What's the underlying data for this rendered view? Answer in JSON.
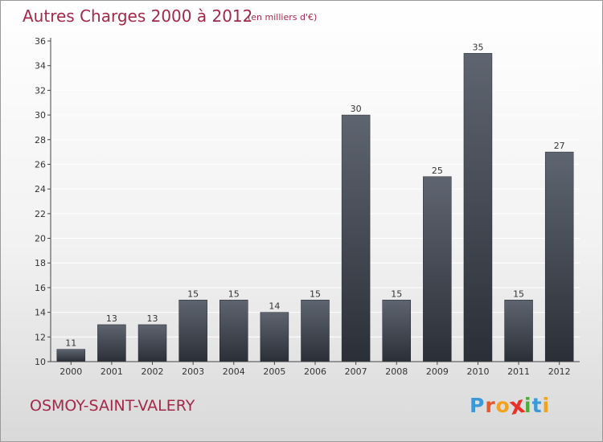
{
  "header": {
    "title": "Autres Charges 2000 à 2012",
    "unit": "(en milliers d'€)"
  },
  "footer": {
    "commune": "OSMOY-SAINT-VALERY",
    "logo_letters": [
      "P",
      "r",
      "o",
      "x",
      "i",
      "t",
      "i"
    ],
    "logo_colors": [
      "#3a9ad9",
      "#e8562a",
      "#f2a21b",
      "#e8312a",
      "#4cae3a",
      "#3a9ad9",
      "#f2a21b"
    ]
  },
  "colors": {
    "title": "#a3294a",
    "bar_top": "#5f6570",
    "bar_bottom": "#2a2f37",
    "axis": "#444444",
    "grid": "#ffffff"
  },
  "chart_data": {
    "type": "bar",
    "categories": [
      "2000",
      "2001",
      "2002",
      "2003",
      "2004",
      "2005",
      "2006",
      "2007",
      "2008",
      "2009",
      "2010",
      "2011",
      "2012"
    ],
    "values": [
      11,
      13,
      13,
      15,
      15,
      14,
      15,
      30,
      15,
      25,
      35,
      15,
      27
    ],
    "title": "Autres Charges 2000 à 2012",
    "ylim": [
      10,
      36
    ],
    "yticks": [
      10,
      12,
      14,
      16,
      18,
      20,
      22,
      24,
      26,
      28,
      30,
      32,
      34,
      36
    ],
    "grid": true
  }
}
